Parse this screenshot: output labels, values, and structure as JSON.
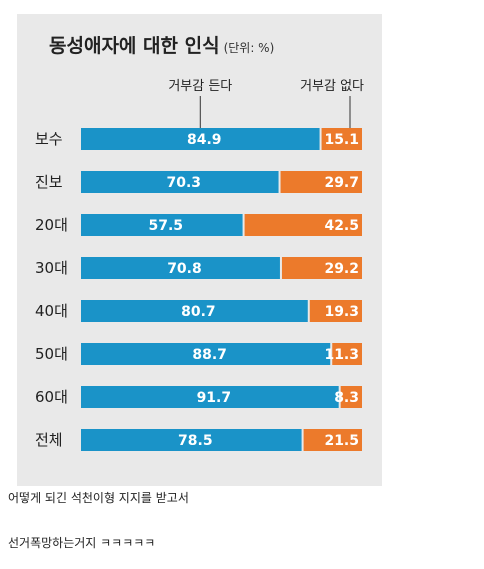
{
  "chart_data": {
    "type": "bar",
    "stacked": true,
    "orientation": "horizontal",
    "title": "동성애자에 대한 인식",
    "unit": "(단위: %)",
    "categories": [
      "보수",
      "진보",
      "20대",
      "30대",
      "40대",
      "50대",
      "60대",
      "전체"
    ],
    "series": [
      {
        "name": "거부감 든다",
        "color": "#1a93c8",
        "values": [
          84.9,
          70.3,
          57.5,
          70.8,
          80.7,
          88.7,
          91.7,
          78.5
        ]
      },
      {
        "name": "거부감 없다",
        "color": "#ec7a2b",
        "values": [
          15.1,
          29.7,
          42.5,
          29.2,
          19.3,
          11.3,
          8.3,
          21.5
        ]
      }
    ],
    "xlim": [
      0,
      100
    ],
    "legend_placement": "top"
  },
  "captions": {
    "line1": "어떻게 되긴 석천이형 지지를 받고서",
    "line2": "선거폭망하는거지 ㅋㅋㅋㅋㅋ"
  }
}
